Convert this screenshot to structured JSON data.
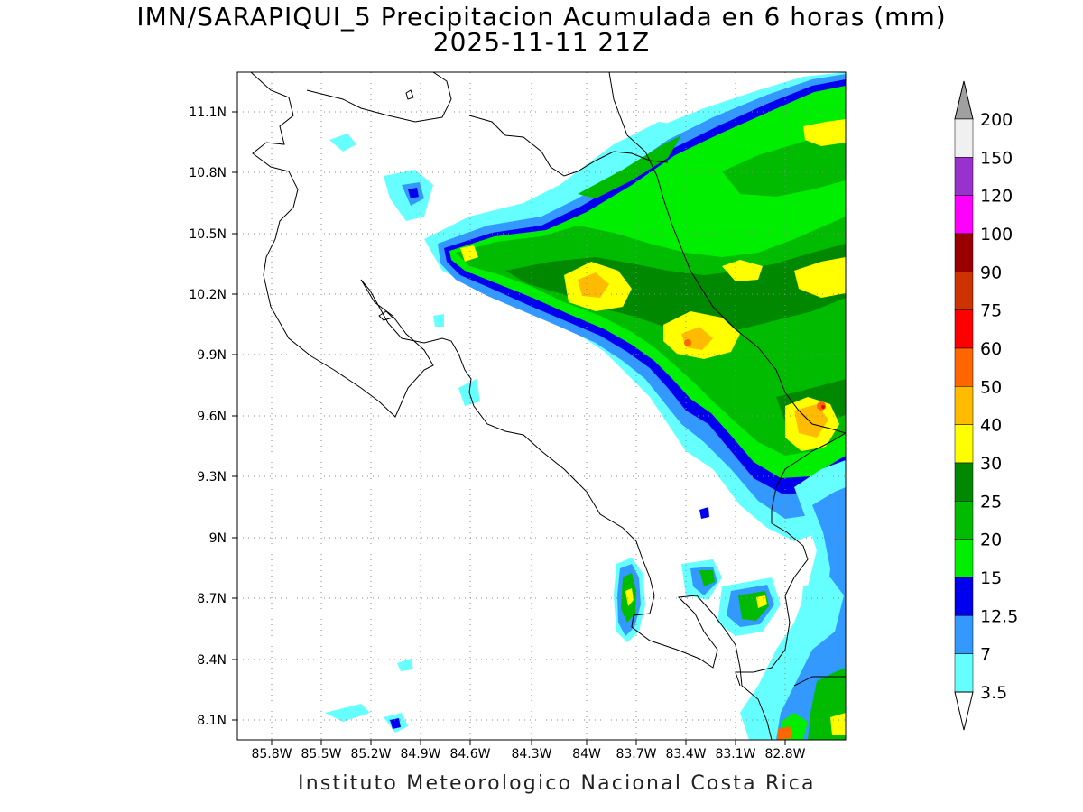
{
  "title": {
    "line1": "IMN/SARAPIQUI_5 Precipitacion Acumulada en 6 horas (mm)",
    "line2": "2025-11-11 21Z"
  },
  "footer": "Instituto Meteorologico Nacional Costa Rica",
  "map": {
    "lon_ticks": [
      "85.8W",
      "85.5W",
      "85.2W",
      "84.9W",
      "84.6W",
      "84.3W",
      "84W",
      "83.7W",
      "83.4W",
      "83.1W",
      "82.8W"
    ],
    "lat_ticks": [
      "11.1N",
      "10.8N",
      "10.5N",
      "10.2N",
      "9.9N",
      "9.6N",
      "9.3N",
      "9N",
      "8.7N",
      "8.4N",
      "8.1N"
    ],
    "grid": "dotted"
  },
  "colorbar": {
    "labels": [
      "200",
      "150",
      "120",
      "100",
      "90",
      "75",
      "60",
      "50",
      "40",
      "30",
      "25",
      "20",
      "15",
      "12.5",
      "7",
      "3.5"
    ],
    "colors_top_to_bottom": [
      "#f0f0f0",
      "#9932cc",
      "#ff00ff",
      "#990000",
      "#cc3300",
      "#ff0000",
      "#ff6600",
      "#ffbb00",
      "#ffff00",
      "#008800",
      "#00bb00",
      "#00ee00",
      "#0000ee",
      "#3399ff",
      "#66ffff"
    ],
    "over_color": "#a0a0a0",
    "under_color": "#ffffff"
  },
  "precip_colors": {
    "c3_5": "#66ffff",
    "c7": "#3399ff",
    "c12_5": "#0000ee",
    "c15": "#00ee00",
    "c20": "#00bb00",
    "c25": "#008800",
    "c30": "#ffff00",
    "c40": "#ffbb00",
    "c50": "#ff6600",
    "c60": "#ff0000"
  }
}
